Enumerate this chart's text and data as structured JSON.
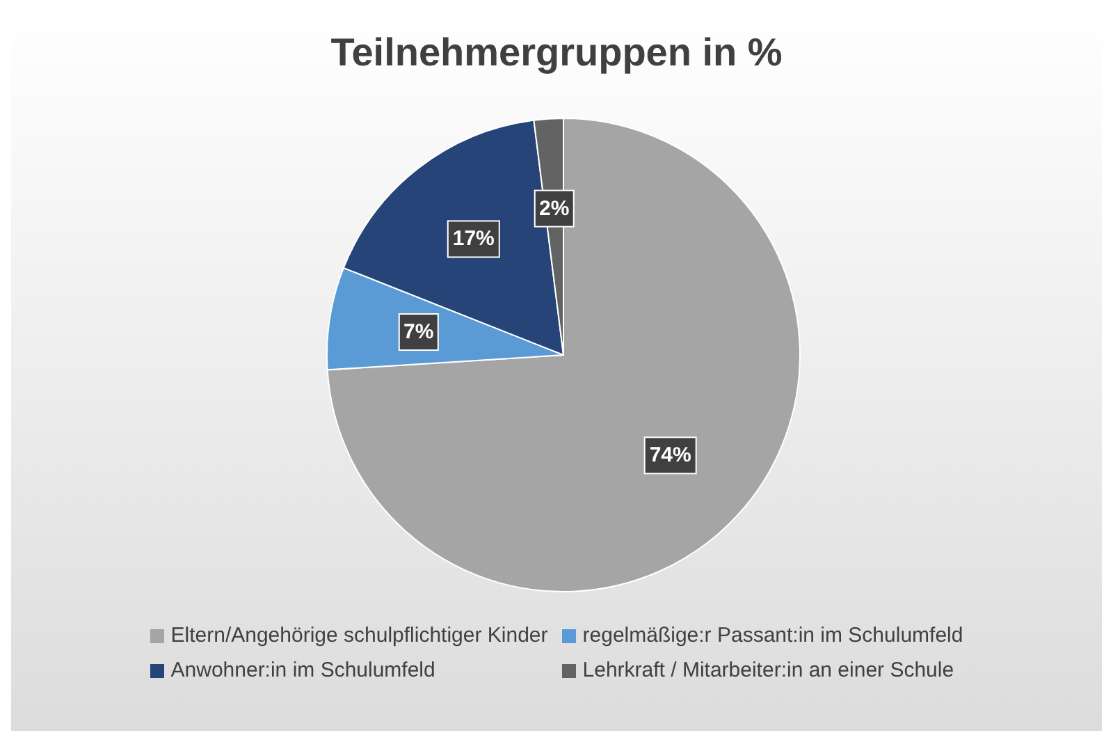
{
  "chart_data": {
    "type": "pie",
    "title": "Teilnehmergruppen in %",
    "categories": [
      "Eltern/Angehörige schulpflichtiger Kinder",
      "regelmäßige:r Passant:in im Schulumfeld",
      "Anwohner:in im Schulumfeld",
      "Lehrkraft / Mitarbeiter:in an einer Schule"
    ],
    "values": [
      74,
      7,
      17,
      2
    ],
    "colors": [
      "#a5a5a5",
      "#5b9bd5",
      "#264478",
      "#636363"
    ],
    "value_labels": [
      "74%",
      "7%",
      "17%",
      "2%"
    ],
    "legend": "bottom"
  }
}
